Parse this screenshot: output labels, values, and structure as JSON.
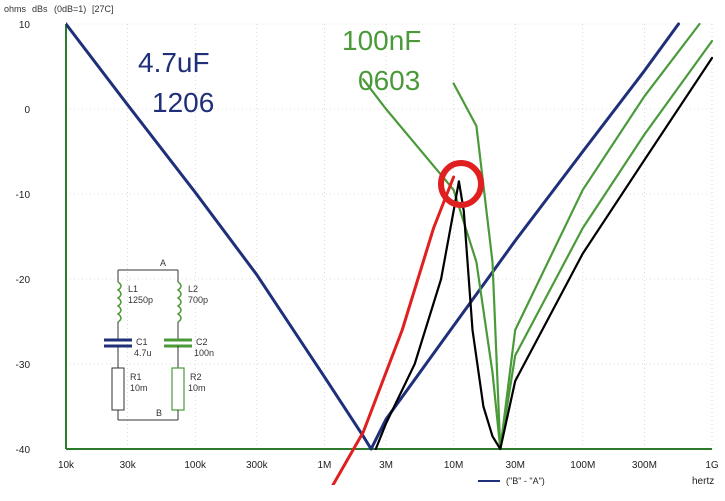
{
  "chart_data": {
    "type": "line",
    "header": {
      "unit_left": "ohms",
      "unit_right": "dBs",
      "scale_note": "(0dB=1)",
      "temp_note": "[27C]"
    },
    "xlabel": "hertz",
    "x_scale": "log",
    "x_ticks": [
      {
        "value": 10000,
        "label": "10k"
      },
      {
        "value": 30000,
        "label": "30k"
      },
      {
        "value": 100000,
        "label": "100k"
      },
      {
        "value": 300000,
        "label": "300k"
      },
      {
        "value": 1000000,
        "label": "1M"
      },
      {
        "value": 3000000,
        "label": "3M"
      },
      {
        "value": 10000000,
        "label": "10M"
      },
      {
        "value": 30000000,
        "label": "30M"
      },
      {
        "value": 100000000,
        "label": "100M"
      },
      {
        "value": 300000000,
        "label": "300M"
      },
      {
        "value": 1000000000,
        "label": "1G"
      }
    ],
    "xlim": [
      10000,
      1000000000
    ],
    "ylim": [
      -40,
      10
    ],
    "y_ticks": [
      {
        "value": 10,
        "label": "10"
      },
      {
        "value": 0,
        "label": "0"
      },
      {
        "value": -10,
        "label": "-10"
      },
      {
        "value": -20,
        "label": "-20"
      },
      {
        "value": -30,
        "label": "-30"
      },
      {
        "value": -40,
        "label": "-40"
      }
    ],
    "series": [
      {
        "name": "",
        "color": "#1f2f7a",
        "x": [
          10000,
          30000,
          100000,
          300000,
          1000000,
          2000000,
          2300000,
          3000000,
          10000000,
          30000000,
          100000000,
          300000000,
          550000000
        ],
        "y": [
          10,
          0.5,
          -9.8,
          -19.5,
          -31.5,
          -38.5,
          -40,
          -36.5,
          -25.5,
          -15.5,
          -5,
          4.5,
          10
        ]
      },
      {
        "name": "",
        "color": "#4a9a3a",
        "x": [
          2000000,
          3000000,
          10000000,
          15000000,
          20000000,
          23000000,
          30000000,
          100000000,
          300000000,
          800000000
        ],
        "y": [
          3.5,
          0,
          -9.5,
          -18,
          -31,
          -40,
          -26,
          -9.5,
          1.5,
          10
        ]
      },
      {
        "name": "",
        "color": "#4a9a3a",
        "x": [
          10000000,
          15000000,
          20000000,
          23000000,
          30000000,
          100000000,
          300000000,
          1000000000
        ],
        "y": [
          3,
          -2,
          -18,
          -40,
          -29,
          -14,
          -3,
          8
        ]
      },
      {
        "name": "",
        "color": "#000000",
        "x": [
          2500000,
          3000000,
          5000000,
          8000000,
          10000000,
          11000000,
          12000000,
          14000000,
          17000000,
          20000000,
          23000000,
          30000000,
          100000000,
          300000000,
          1000000000
        ],
        "y": [
          -40,
          -37,
          -30,
          -20,
          -12,
          -8.5,
          -12,
          -26,
          -35,
          -38.5,
          -40,
          -32,
          -17,
          -6,
          6
        ]
      },
      {
        "name": "",
        "color": "#e02020",
        "x": [
          1000000,
          2000000,
          4000000,
          7000000,
          10000000
        ],
        "y": [
          -46,
          -38,
          -26,
          -14,
          -8
        ]
      }
    ],
    "annotations": [
      {
        "text": "4.7uF",
        "color": "#1f2f7a"
      },
      {
        "text": "1206",
        "color": "#1f2f7a"
      },
      {
        "text": "100nF",
        "color": "#4a9a3a"
      },
      {
        "text": "0603",
        "color": "#4a9a3a"
      }
    ],
    "legend": {
      "placement": "bottom-right",
      "entries": [
        {
          "text": "(\"B\" - \"A\")",
          "color": "#1f2f7a"
        }
      ]
    },
    "schematic": {
      "node_top": "A",
      "node_bottom": "B",
      "left_branch": [
        {
          "ref": "L1",
          "value": "1250p"
        },
        {
          "ref": "C1",
          "value": "4.7u"
        },
        {
          "ref": "R1",
          "value": "10m"
        }
      ],
      "right_branch": [
        {
          "ref": "L2",
          "value": "700p"
        },
        {
          "ref": "C2",
          "value": "100n"
        },
        {
          "ref": "R2",
          "value": "10m"
        }
      ]
    },
    "grid": true
  }
}
